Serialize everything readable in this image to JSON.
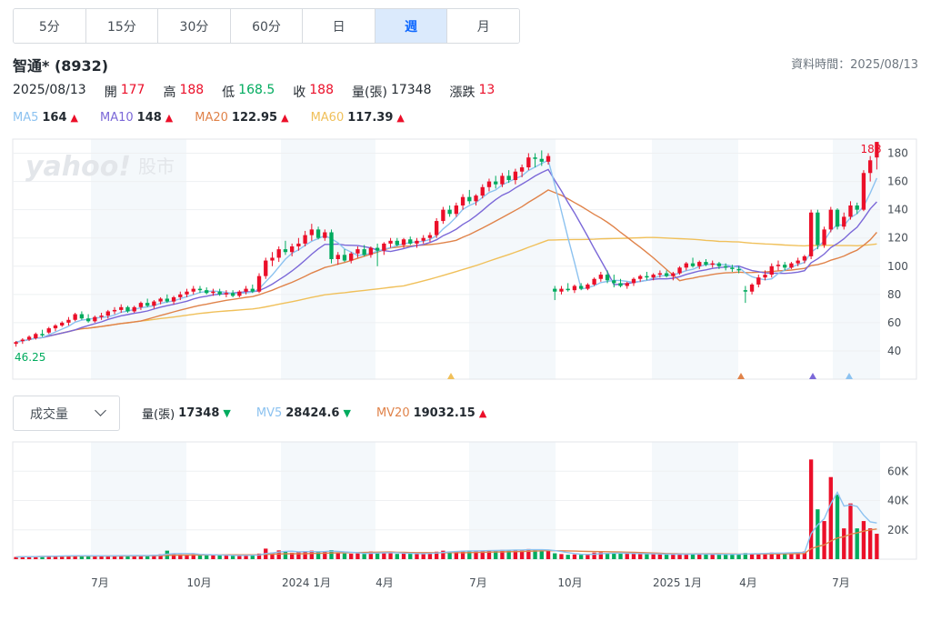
{
  "tabs": [
    {
      "label": "5分",
      "active": false
    },
    {
      "label": "15分",
      "active": false
    },
    {
      "label": "30分",
      "active": false
    },
    {
      "label": "60分",
      "active": false
    },
    {
      "label": "日",
      "active": false
    },
    {
      "label": "週",
      "active": true
    },
    {
      "label": "月",
      "active": false
    }
  ],
  "stock": {
    "name": "智通* (8932)"
  },
  "data_time": "資料時間：2025/08/13",
  "ohlc": {
    "date": "2025/08/13",
    "open_label": "開",
    "open": "177",
    "high_label": "高",
    "high": "188",
    "low_label": "低",
    "low": "168.5",
    "close_label": "收",
    "close": "188",
    "vol_label": "量(張)",
    "vol": "17348",
    "chg_label": "漲跌",
    "chg": "13"
  },
  "ma_legend": [
    {
      "label": "MA5",
      "value": "164",
      "color": "#8cc2f0"
    },
    {
      "label": "MA10",
      "value": "148",
      "color": "#7b68d8"
    },
    {
      "label": "MA20",
      "value": "122.95",
      "color": "#e0834a"
    },
    {
      "label": "MA60",
      "value": "117.39",
      "color": "#f0c05a"
    }
  ],
  "volume_panel": {
    "select_label": "成交量",
    "vol_label": "量(張)",
    "vol_value": "17348",
    "mv5_label": "MV5",
    "mv5_value": "28424.6",
    "mv20_label": "MV20",
    "mv20_value": "19032.15"
  },
  "colors": {
    "up": "#eb0f29",
    "down": "#00ab5e",
    "watermark": "#e3e6ea",
    "band": "#f4f8fb"
  },
  "watermark": {
    "logo": "yahoo!",
    "suffix": "股市"
  },
  "chart_data": {
    "type": "candlestick",
    "price_axis": {
      "ticks": [
        40,
        60,
        80,
        100,
        120,
        140,
        160,
        180
      ],
      "ylim": [
        20,
        190
      ]
    },
    "volume_axis": {
      "ticks": [
        "20K",
        "40K",
        "60K"
      ],
      "tick_values": [
        20000,
        40000,
        60000
      ],
      "ylim": [
        0,
        80000
      ]
    },
    "x_ticks": [
      "7月",
      "10月",
      "2024 1月",
      "4月",
      "7月",
      "10月",
      "2025 1月",
      "4月",
      "7月"
    ],
    "annotations": {
      "max_label": "188",
      "min_label": "46.25"
    },
    "candles": [
      [
        45,
        47,
        43,
        46.25,
        1500
      ],
      [
        47,
        49,
        45,
        48,
        1800
      ],
      [
        48,
        51,
        47,
        50,
        1700
      ],
      [
        49,
        53,
        48,
        52,
        2000
      ],
      [
        52,
        55,
        50,
        51,
        2200
      ],
      [
        53,
        57,
        52,
        56,
        2300
      ],
      [
        56,
        59,
        54,
        58,
        2100
      ],
      [
        58,
        61,
        57,
        60,
        2400
      ],
      [
        60,
        64,
        58,
        62,
        2500
      ],
      [
        62,
        67,
        61,
        66,
        2600
      ],
      [
        66,
        68,
        62,
        63,
        2300
      ],
      [
        63,
        66,
        60,
        61,
        2000
      ],
      [
        61,
        65,
        60,
        64,
        2200
      ],
      [
        64,
        67,
        62,
        65,
        2300
      ],
      [
        65,
        69,
        63,
        68,
        2500
      ],
      [
        68,
        71,
        66,
        69,
        2600
      ],
      [
        69,
        73,
        67,
        71,
        2400
      ],
      [
        71,
        72,
        67,
        68,
        2300
      ],
      [
        68,
        72,
        67,
        71,
        2500
      ],
      [
        71,
        75,
        69,
        74,
        2700
      ],
      [
        74,
        77,
        71,
        72,
        2500
      ],
      [
        72,
        76,
        70,
        75,
        3000
      ],
      [
        75,
        78,
        73,
        77,
        3300
      ],
      [
        77,
        80,
        74,
        75,
        5800
      ],
      [
        75,
        79,
        73,
        78,
        3900
      ],
      [
        78,
        82,
        76,
        80,
        3200
      ],
      [
        80,
        84,
        78,
        82,
        3100
      ],
      [
        82,
        86,
        80,
        84,
        3300
      ],
      [
        84,
        86,
        81,
        83,
        3000
      ],
      [
        83,
        85,
        80,
        81,
        2800
      ],
      [
        81,
        84,
        79,
        82,
        2600
      ],
      [
        82,
        84,
        79,
        80,
        2500
      ],
      [
        80,
        83,
        78,
        81,
        2700
      ],
      [
        81,
        83,
        78,
        79,
        2400
      ],
      [
        79,
        83,
        78,
        82,
        2600
      ],
      [
        82,
        86,
        80,
        84,
        2800
      ],
      [
        84,
        87,
        81,
        82,
        2700
      ],
      [
        82,
        95,
        81,
        93,
        3800
      ],
      [
        93,
        106,
        91,
        104,
        7200
      ],
      [
        104,
        110,
        100,
        106,
        4500
      ],
      [
        106,
        114,
        103,
        112,
        6000
      ],
      [
        112,
        118,
        108,
        110,
        5200
      ],
      [
        110,
        116,
        107,
        114,
        4400
      ],
      [
        114,
        120,
        111,
        116,
        4700
      ],
      [
        116,
        125,
        114,
        122,
        5500
      ],
      [
        122,
        130,
        118,
        126,
        5800
      ],
      [
        126,
        128,
        119,
        120,
        4900
      ],
      [
        120,
        126,
        118,
        124,
        5300
      ],
      [
        124,
        126,
        102,
        105,
        6200
      ],
      [
        105,
        110,
        101,
        108,
        4500
      ],
      [
        108,
        112,
        103,
        104,
        3900
      ],
      [
        104,
        110,
        102,
        109,
        3700
      ],
      [
        109,
        114,
        106,
        112,
        3900
      ],
      [
        112,
        115,
        107,
        108,
        3600
      ],
      [
        108,
        114,
        106,
        113,
        5200
      ],
      [
        113,
        116,
        100,
        111,
        4400
      ],
      [
        111,
        117,
        108,
        116,
        4600
      ],
      [
        116,
        120,
        113,
        118,
        4100
      ],
      [
        118,
        120,
        114,
        115,
        3600
      ],
      [
        115,
        120,
        113,
        119,
        3800
      ],
      [
        119,
        121,
        115,
        116,
        3700
      ],
      [
        116,
        120,
        113,
        118,
        3900
      ],
      [
        118,
        122,
        116,
        120,
        4000
      ],
      [
        120,
        124,
        117,
        122,
        4200
      ],
      [
        122,
        134,
        120,
        132,
        5100
      ],
      [
        132,
        142,
        130,
        140,
        5800
      ],
      [
        140,
        143,
        135,
        137,
        5300
      ],
      [
        137,
        145,
        135,
        143,
        5500
      ],
      [
        143,
        151,
        140,
        149,
        5700
      ],
      [
        149,
        154,
        144,
        146,
        5600
      ],
      [
        146,
        151,
        143,
        150,
        5900
      ],
      [
        150,
        158,
        148,
        156,
        5800
      ],
      [
        156,
        162,
        153,
        160,
        6100
      ],
      [
        160,
        164,
        155,
        158,
        6000
      ],
      [
        158,
        166,
        156,
        164,
        6300
      ],
      [
        164,
        168,
        159,
        161,
        6200
      ],
      [
        161,
        169,
        158,
        167,
        6400
      ],
      [
        167,
        172,
        163,
        170,
        6300
      ],
      [
        170,
        180,
        168,
        177,
        6900
      ],
      [
        177,
        180,
        170,
        176,
        6500
      ],
      [
        176,
        182,
        171,
        174,
        6200
      ],
      [
        174,
        180,
        172,
        178,
        5600
      ],
      [
        84,
        86,
        76,
        82,
        4000
      ],
      [
        82,
        86,
        80,
        84,
        3500
      ],
      [
        84,
        88,
        82,
        83,
        3000
      ],
      [
        83,
        87,
        81,
        86,
        3200
      ],
      [
        86,
        88,
        83,
        84,
        3000
      ],
      [
        84,
        88,
        83,
        87,
        3400
      ],
      [
        87,
        92,
        86,
        91,
        4500
      ],
      [
        91,
        96,
        89,
        94,
        4600
      ],
      [
        94,
        97,
        88,
        90,
        4100
      ],
      [
        90,
        94,
        85,
        88,
        3800
      ],
      [
        88,
        91,
        85,
        86,
        3900
      ],
      [
        86,
        89,
        84,
        88,
        3700
      ],
      [
        88,
        92,
        86,
        91,
        4000
      ],
      [
        91,
        94,
        89,
        93,
        3600
      ],
      [
        93,
        96,
        90,
        92,
        3500
      ],
      [
        92,
        95,
        90,
        94,
        3400
      ],
      [
        94,
        97,
        92,
        95,
        3300
      ],
      [
        95,
        97,
        92,
        93,
        3200
      ],
      [
        93,
        96,
        90,
        95,
        3400
      ],
      [
        95,
        100,
        94,
        99,
        3600
      ],
      [
        99,
        103,
        97,
        102,
        3700
      ],
      [
        102,
        106,
        99,
        100,
        3500
      ],
      [
        100,
        104,
        98,
        103,
        3400
      ],
      [
        103,
        105,
        100,
        101,
        3300
      ],
      [
        101,
        104,
        99,
        102,
        3200
      ],
      [
        102,
        103,
        98,
        100,
        3100
      ],
      [
        100,
        102,
        97,
        99,
        3300
      ],
      [
        99,
        101,
        96,
        98,
        3500
      ],
      [
        98,
        100,
        95,
        97,
        3600
      ],
      [
        83,
        86,
        74,
        82,
        4200
      ],
      [
        82,
        88,
        80,
        87,
        3800
      ],
      [
        87,
        94,
        85,
        92,
        3900
      ],
      [
        92,
        97,
        90,
        94,
        4100
      ],
      [
        94,
        102,
        92,
        100,
        4500
      ],
      [
        100,
        104,
        97,
        101,
        4400
      ],
      [
        101,
        103,
        97,
        99,
        4300
      ],
      [
        99,
        103,
        98,
        102,
        4600
      ],
      [
        102,
        106,
        100,
        104,
        4800
      ],
      [
        104,
        108,
        102,
        107,
        5200
      ],
      [
        107,
        140,
        105,
        138,
        68000
      ],
      [
        138,
        140,
        112,
        115,
        34000
      ],
      [
        115,
        128,
        113,
        126,
        26000
      ],
      [
        126,
        142,
        124,
        140,
        56000
      ],
      [
        140,
        141,
        126,
        128,
        44000
      ],
      [
        128,
        138,
        126,
        135,
        21000
      ],
      [
        135,
        146,
        133,
        143,
        38000
      ],
      [
        143,
        145,
        137,
        140,
        21000
      ],
      [
        140,
        168,
        139,
        166,
        26000
      ],
      [
        166,
        178,
        160,
        175,
        21000
      ],
      [
        177,
        188,
        168.5,
        188,
        17348
      ]
    ]
  }
}
